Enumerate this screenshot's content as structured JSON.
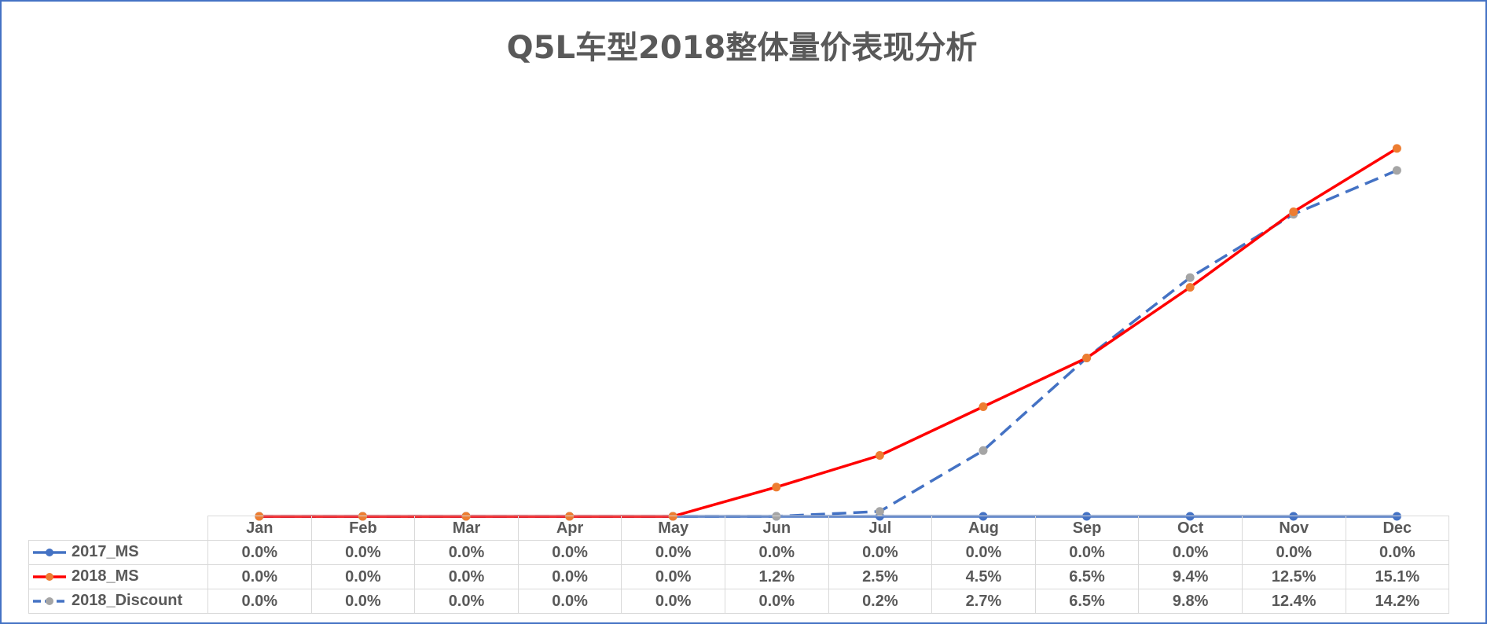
{
  "chart_data": {
    "type": "line",
    "title": "Q5L车型2018整体量价表现分析",
    "categories": [
      "Jan",
      "Feb",
      "Mar",
      "Apr",
      "May",
      "Jun",
      "Jul",
      "Aug",
      "Sep",
      "Oct",
      "Nov",
      "Dec"
    ],
    "ylim": [
      0,
      0.17
    ],
    "grid": false,
    "legend": "data-table",
    "series": [
      {
        "name": "2017_MS",
        "values": [
          0,
          0,
          0,
          0,
          0,
          0,
          0,
          0,
          0,
          0,
          0,
          0
        ],
        "labels": [
          "0.0%",
          "0.0%",
          "0.0%",
          "0.0%",
          "0.0%",
          "0.0%",
          "0.0%",
          "0.0%",
          "0.0%",
          "0.0%",
          "0.0%",
          "0.0%"
        ],
        "line_color": "#4472c4",
        "marker_color": "#4472c4",
        "dash": "solid"
      },
      {
        "name": "2018_MS",
        "values": [
          0,
          0,
          0,
          0,
          0,
          0.012,
          0.025,
          0.045,
          0.065,
          0.094,
          0.125,
          0.151
        ],
        "labels": [
          "0.0%",
          "0.0%",
          "0.0%",
          "0.0%",
          "0.0%",
          "1.2%",
          "2.5%",
          "4.5%",
          "6.5%",
          "9.4%",
          "12.5%",
          "15.1%"
        ],
        "line_color": "#ff0000",
        "marker_color": "#ed7d31",
        "dash": "solid"
      },
      {
        "name": "2018_Discount",
        "values": [
          0,
          0,
          0,
          0,
          0,
          0,
          0.002,
          0.027,
          0.065,
          0.098,
          0.124,
          0.142
        ],
        "labels": [
          "0.0%",
          "0.0%",
          "0.0%",
          "0.0%",
          "0.0%",
          "0.0%",
          "0.2%",
          "2.7%",
          "6.5%",
          "9.8%",
          "12.4%",
          "14.2%"
        ],
        "line_color": "#4472c4",
        "marker_color": "#a5a5a5",
        "dash": "dashed"
      }
    ]
  }
}
